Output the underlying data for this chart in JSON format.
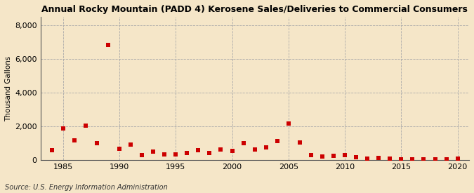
{
  "title": "Annual Rocky Mountain (PADD 4) Kerosene Sales/Deliveries to Commercial Consumers",
  "ylabel": "Thousand Gallons",
  "source": "Source: U.S. Energy Information Administration",
  "background_color": "#f5e6c8",
  "plot_background_color": "#f5e6c8",
  "marker_color": "#cc0000",
  "marker": "s",
  "marker_size": 4,
  "xlim": [
    1983,
    2021
  ],
  "ylim": [
    0,
    8500
  ],
  "yticks": [
    0,
    2000,
    4000,
    6000,
    8000
  ],
  "xticks": [
    1985,
    1990,
    1995,
    2000,
    2005,
    2010,
    2015,
    2020
  ],
  "years": [
    1984,
    1985,
    1986,
    1987,
    1988,
    1989,
    1990,
    1991,
    1992,
    1993,
    1994,
    1995,
    1996,
    1997,
    1998,
    1999,
    2000,
    2001,
    2002,
    2003,
    2004,
    2005,
    2006,
    2007,
    2008,
    2009,
    2010,
    2011,
    2012,
    2013,
    2014,
    2015,
    2016,
    2017,
    2018,
    2019,
    2020
  ],
  "values": [
    600,
    1900,
    1200,
    2050,
    1000,
    6850,
    700,
    950,
    320,
    520,
    340,
    350,
    450,
    600,
    450,
    650,
    550,
    1000,
    650,
    750,
    1150,
    2200,
    1050,
    300,
    240,
    280,
    310,
    200,
    100,
    130,
    120,
    80,
    60,
    50,
    40,
    70,
    90
  ]
}
